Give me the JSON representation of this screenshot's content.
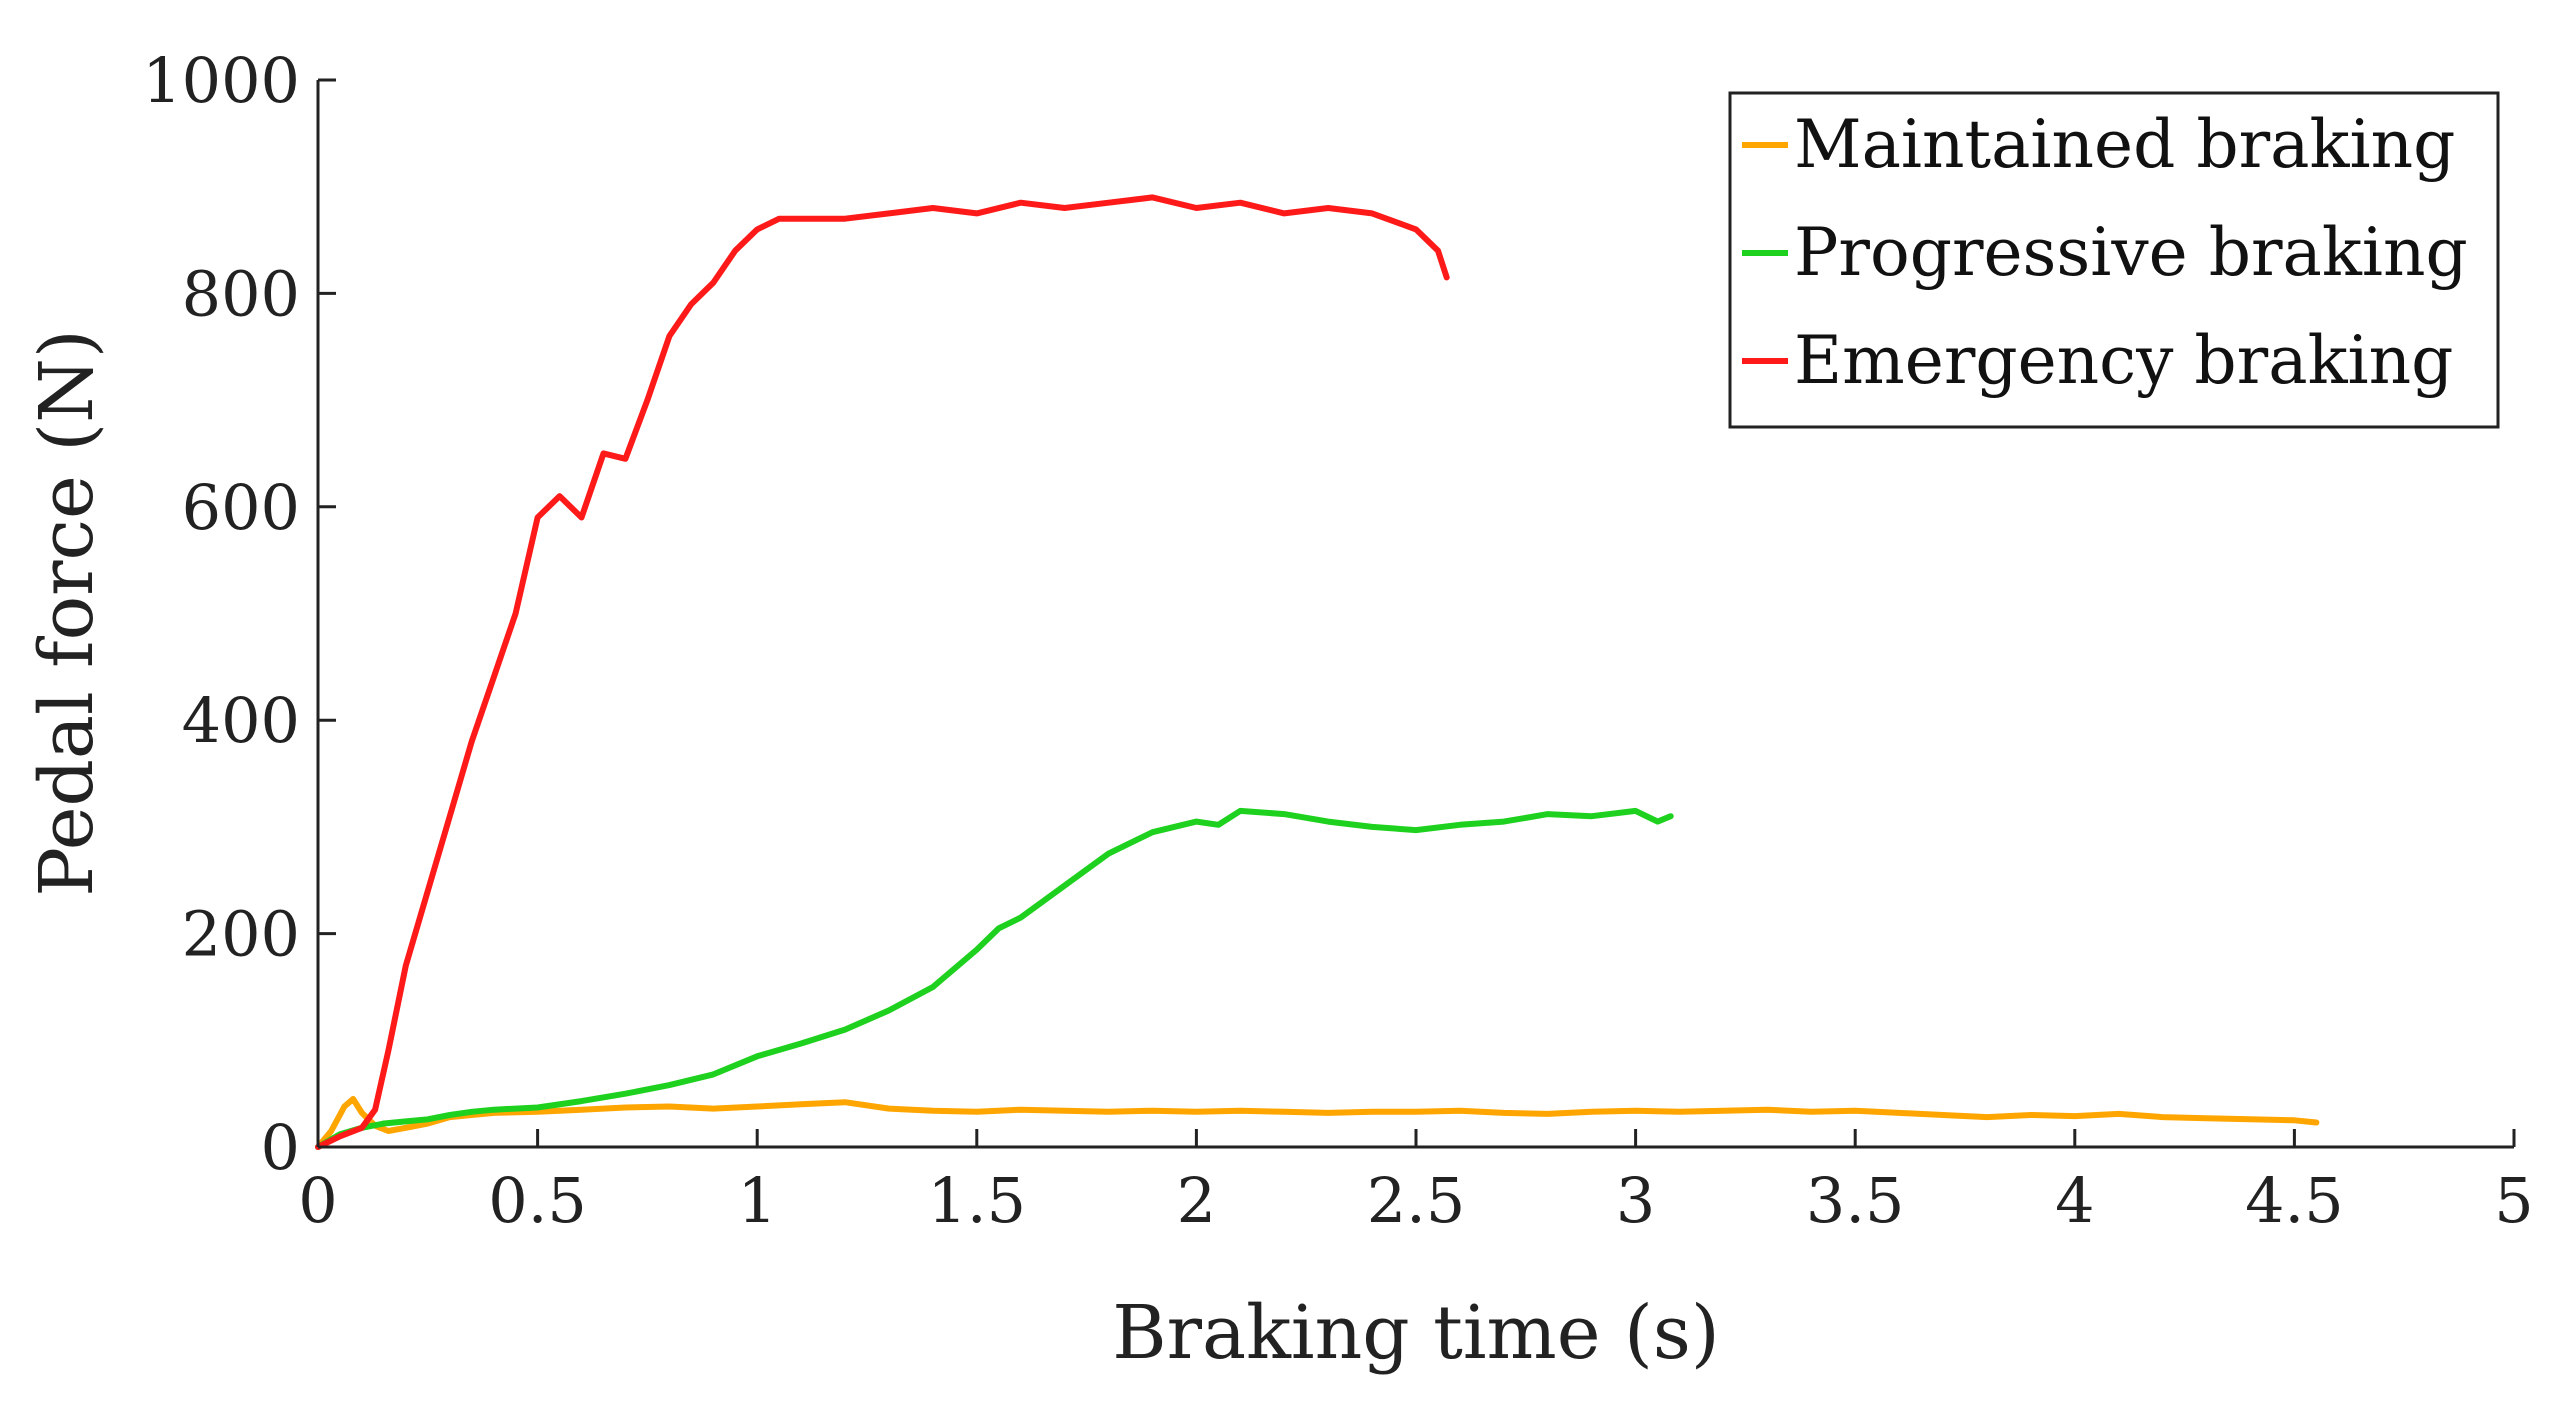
{
  "chart_data": {
    "type": "line",
    "title": "",
    "xlabel": "Braking time (s)",
    "ylabel": "Pedal force (N)",
    "xlim": [
      0,
      5
    ],
    "ylim": [
      0,
      1000
    ],
    "xticks": [
      0,
      0.5,
      1,
      1.5,
      2,
      2.5,
      3,
      3.5,
      4,
      4.5,
      5
    ],
    "xtick_labels": [
      "0",
      "0.5",
      "1",
      "1.5",
      "2",
      "2.5",
      "3",
      "3.5",
      "4",
      "4.5",
      "5"
    ],
    "yticks": [
      0,
      200,
      400,
      600,
      800,
      1000
    ],
    "ytick_labels": [
      "0",
      "200",
      "400",
      "600",
      "800",
      "1000"
    ],
    "grid": false,
    "legend_position": "top-right",
    "series": [
      {
        "name": "Maintained braking",
        "color": "#FFA500",
        "x": [
          0,
          0.03,
          0.06,
          0.08,
          0.1,
          0.13,
          0.16,
          0.2,
          0.25,
          0.3,
          0.35,
          0.4,
          0.5,
          0.6,
          0.7,
          0.8,
          0.9,
          1.0,
          1.1,
          1.2,
          1.3,
          1.4,
          1.5,
          1.6,
          1.7,
          1.8,
          1.9,
          2.0,
          2.1,
          2.2,
          2.3,
          2.4,
          2.5,
          2.6,
          2.7,
          2.8,
          2.9,
          3.0,
          3.1,
          3.2,
          3.3,
          3.4,
          3.5,
          3.6,
          3.7,
          3.8,
          3.9,
          4.0,
          4.1,
          4.2,
          4.3,
          4.4,
          4.5,
          4.55
        ],
        "y": [
          0,
          15,
          38,
          45,
          32,
          20,
          15,
          18,
          22,
          28,
          30,
          32,
          33,
          35,
          37,
          38,
          36,
          38,
          40,
          42,
          36,
          34,
          33,
          35,
          34,
          33,
          34,
          33,
          34,
          33,
          32,
          33,
          33,
          34,
          32,
          31,
          33,
          34,
          33,
          34,
          35,
          33,
          34,
          32,
          30,
          28,
          30,
          29,
          31,
          28,
          27,
          26,
          25,
          23
        ]
      },
      {
        "name": "Progressive braking",
        "color": "#1FD11F",
        "x": [
          0,
          0.05,
          0.1,
          0.15,
          0.2,
          0.25,
          0.3,
          0.35,
          0.4,
          0.5,
          0.6,
          0.7,
          0.8,
          0.9,
          1.0,
          1.1,
          1.2,
          1.3,
          1.4,
          1.5,
          1.55,
          1.6,
          1.7,
          1.8,
          1.9,
          2.0,
          2.05,
          2.1,
          2.2,
          2.3,
          2.4,
          2.5,
          2.6,
          2.7,
          2.8,
          2.9,
          3.0,
          3.05,
          3.08
        ],
        "y": [
          0,
          12,
          18,
          22,
          24,
          26,
          30,
          33,
          35,
          37,
          43,
          50,
          58,
          68,
          85,
          97,
          110,
          128,
          150,
          185,
          205,
          215,
          245,
          275,
          295,
          305,
          302,
          315,
          312,
          305,
          300,
          297,
          302,
          305,
          312,
          310,
          315,
          305,
          310
        ]
      },
      {
        "name": "Emergency braking",
        "color": "#FF1A1A",
        "x": [
          0,
          0.05,
          0.1,
          0.13,
          0.16,
          0.2,
          0.25,
          0.3,
          0.35,
          0.4,
          0.45,
          0.5,
          0.55,
          0.6,
          0.65,
          0.7,
          0.75,
          0.8,
          0.85,
          0.9,
          0.95,
          1.0,
          1.05,
          1.1,
          1.2,
          1.3,
          1.4,
          1.5,
          1.6,
          1.7,
          1.8,
          1.9,
          2.0,
          2.1,
          2.2,
          2.3,
          2.4,
          2.5,
          2.55,
          2.57
        ],
        "y": [
          0,
          10,
          18,
          35,
          90,
          170,
          240,
          310,
          380,
          440,
          500,
          590,
          610,
          590,
          650,
          645,
          700,
          760,
          790,
          810,
          840,
          860,
          870,
          870,
          870,
          875,
          880,
          875,
          885,
          880,
          885,
          890,
          880,
          885,
          875,
          880,
          875,
          860,
          840,
          815
        ]
      }
    ]
  }
}
